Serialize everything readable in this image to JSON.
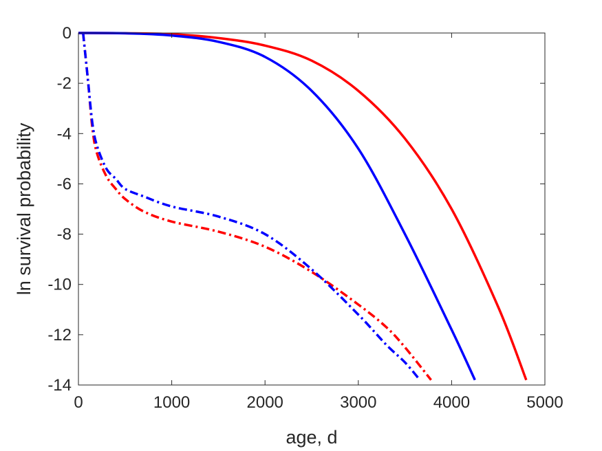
{
  "chart_data": {
    "type": "line",
    "xlabel": "age, d",
    "ylabel": "ln survival probability",
    "xlim": [
      0,
      5000
    ],
    "ylim": [
      -14,
      0
    ],
    "xticks": [
      0,
      1000,
      2000,
      3000,
      4000,
      5000
    ],
    "xtick_labels": [
      "0",
      "1000",
      "2000",
      "3000",
      "4000",
      "5000"
    ],
    "yticks": [
      0,
      -2,
      -4,
      -6,
      -8,
      -10,
      -12,
      -14
    ],
    "ytick_labels": [
      "0",
      "-2",
      "-4",
      "-6",
      "-8",
      "-10",
      "-12",
      "-14"
    ],
    "grid": false,
    "legend": "none",
    "series": [
      {
        "color": "#ff0000",
        "line_style": "solid",
        "x": [
          0,
          500,
          1000,
          1500,
          2000,
          2500,
          3000,
          3500,
          4000,
          4500,
          4800
        ],
        "y": [
          0,
          -0.01,
          -0.05,
          -0.2,
          -0.5,
          -1.1,
          -2.3,
          -4.2,
          -7.0,
          -10.9,
          -13.8
        ]
      },
      {
        "color": "#0000ff",
        "line_style": "solid",
        "x": [
          0,
          500,
          1000,
          1500,
          2000,
          2500,
          3000,
          3500,
          4000,
          4250
        ],
        "y": [
          0,
          -0.01,
          -0.1,
          -0.35,
          -0.95,
          -2.3,
          -4.6,
          -8.0,
          -11.8,
          -13.8
        ]
      },
      {
        "color": "#ff0000",
        "line_style": "dashdot",
        "x": [
          50,
          100,
          150,
          200,
          300,
          400,
          500,
          700,
          1000,
          1500,
          2000,
          2500,
          3000,
          3300,
          3500,
          3780
        ],
        "y": [
          0,
          -1.8,
          -3.8,
          -4.8,
          -5.7,
          -6.2,
          -6.6,
          -7.1,
          -7.5,
          -7.9,
          -8.5,
          -9.5,
          -10.8,
          -11.7,
          -12.5,
          -13.8
        ]
      },
      {
        "color": "#0000ff",
        "line_style": "dashdot",
        "x": [
          50,
          100,
          150,
          200,
          300,
          400,
          500,
          700,
          1000,
          1500,
          2000,
          2500,
          3000,
          3300,
          3500,
          3660
        ],
        "y": [
          0,
          -1.8,
          -3.6,
          -4.5,
          -5.4,
          -5.8,
          -6.2,
          -6.5,
          -6.9,
          -7.3,
          -8.0,
          -9.4,
          -11.2,
          -12.4,
          -13.1,
          -13.8
        ]
      }
    ]
  }
}
